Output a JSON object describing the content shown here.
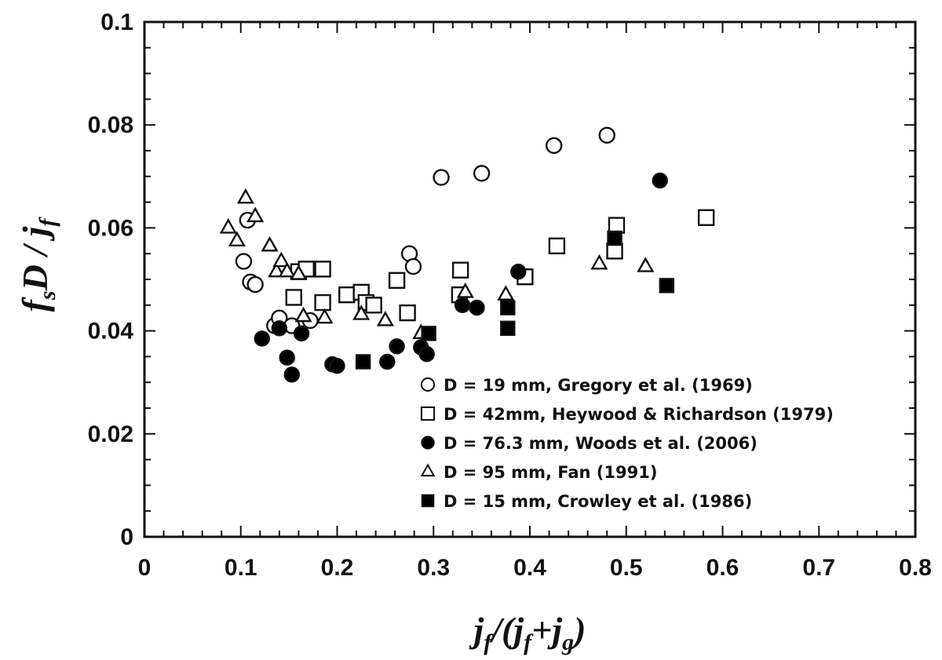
{
  "chart_data": {
    "type": "scatter",
    "xlim": [
      0,
      0.8
    ],
    "ylim": [
      0,
      0.1
    ],
    "xticks": [
      "0",
      "0.1",
      "0.2",
      "0.3",
      "0.4",
      "0.5",
      "0.6",
      "0.7",
      "0.8"
    ],
    "yticks": [
      "0",
      "0.02",
      "0.04",
      "0.06",
      "0.08",
      "0.1"
    ],
    "xlabel": "jf/(jf+jg)",
    "ylabel": "fsD / jf",
    "grid": false,
    "legend_position": "lower-right",
    "series": [
      {
        "name": "D = 19 mm, Gregory et al. (1969)",
        "marker": "circle-open",
        "x": [
          0.107,
          0.103,
          0.11,
          0.115,
          0.135,
          0.14,
          0.153,
          0.172,
          0.275,
          0.279,
          0.308,
          0.35,
          0.425,
          0.48
        ],
        "y": [
          0.0615,
          0.0535,
          0.0495,
          0.049,
          0.041,
          0.0425,
          0.041,
          0.042,
          0.055,
          0.0525,
          0.0698,
          0.0706,
          0.076,
          0.078
        ]
      },
      {
        "name": "D = 42mm, Heywood & Richardson (1979)",
        "marker": "square-open",
        "x": [
          0.16,
          0.168,
          0.185,
          0.155,
          0.185,
          0.21,
          0.225,
          0.23,
          0.238,
          0.262,
          0.273,
          0.328,
          0.327,
          0.395,
          0.428,
          0.488,
          0.49,
          0.583
        ],
        "y": [
          0.0515,
          0.052,
          0.052,
          0.0465,
          0.0455,
          0.047,
          0.0475,
          0.0455,
          0.045,
          0.0498,
          0.0435,
          0.0518,
          0.047,
          0.0505,
          0.0565,
          0.0555,
          0.0605,
          0.062
        ]
      },
      {
        "name": "D = 76.3 mm, Woods et al. (2006)",
        "marker": "circle-filled",
        "x": [
          0.122,
          0.14,
          0.163,
          0.148,
          0.153,
          0.195,
          0.2,
          0.252,
          0.262,
          0.287,
          0.293,
          0.33,
          0.345,
          0.388,
          0.535
        ],
        "y": [
          0.0385,
          0.0405,
          0.0395,
          0.0348,
          0.0315,
          0.0335,
          0.0332,
          0.034,
          0.037,
          0.0368,
          0.0355,
          0.045,
          0.0445,
          0.0515,
          0.0692
        ]
      },
      {
        "name": "D = 95 mm, Fan (1991)",
        "marker": "triangle-open",
        "x": [
          0.087,
          0.096,
          0.105,
          0.115,
          0.13,
          0.137,
          0.142,
          0.148,
          0.16,
          0.165,
          0.187,
          0.225,
          0.25,
          0.287,
          0.333,
          0.375,
          0.472,
          0.52
        ],
        "y": [
          0.06,
          0.0575,
          0.0658,
          0.0622,
          0.0565,
          0.0515,
          0.0535,
          0.0515,
          0.051,
          0.0428,
          0.0425,
          0.0432,
          0.042,
          0.0395,
          0.0475,
          0.047,
          0.053,
          0.0525
        ]
      },
      {
        "name": "D = 15 mm, Crowley et al. (1986)",
        "marker": "square-filled",
        "x": [
          0.227,
          0.295,
          0.377,
          0.377,
          0.488,
          0.542
        ],
        "y": [
          0.034,
          0.0395,
          0.0445,
          0.0405,
          0.058,
          0.0488
        ]
      }
    ]
  }
}
